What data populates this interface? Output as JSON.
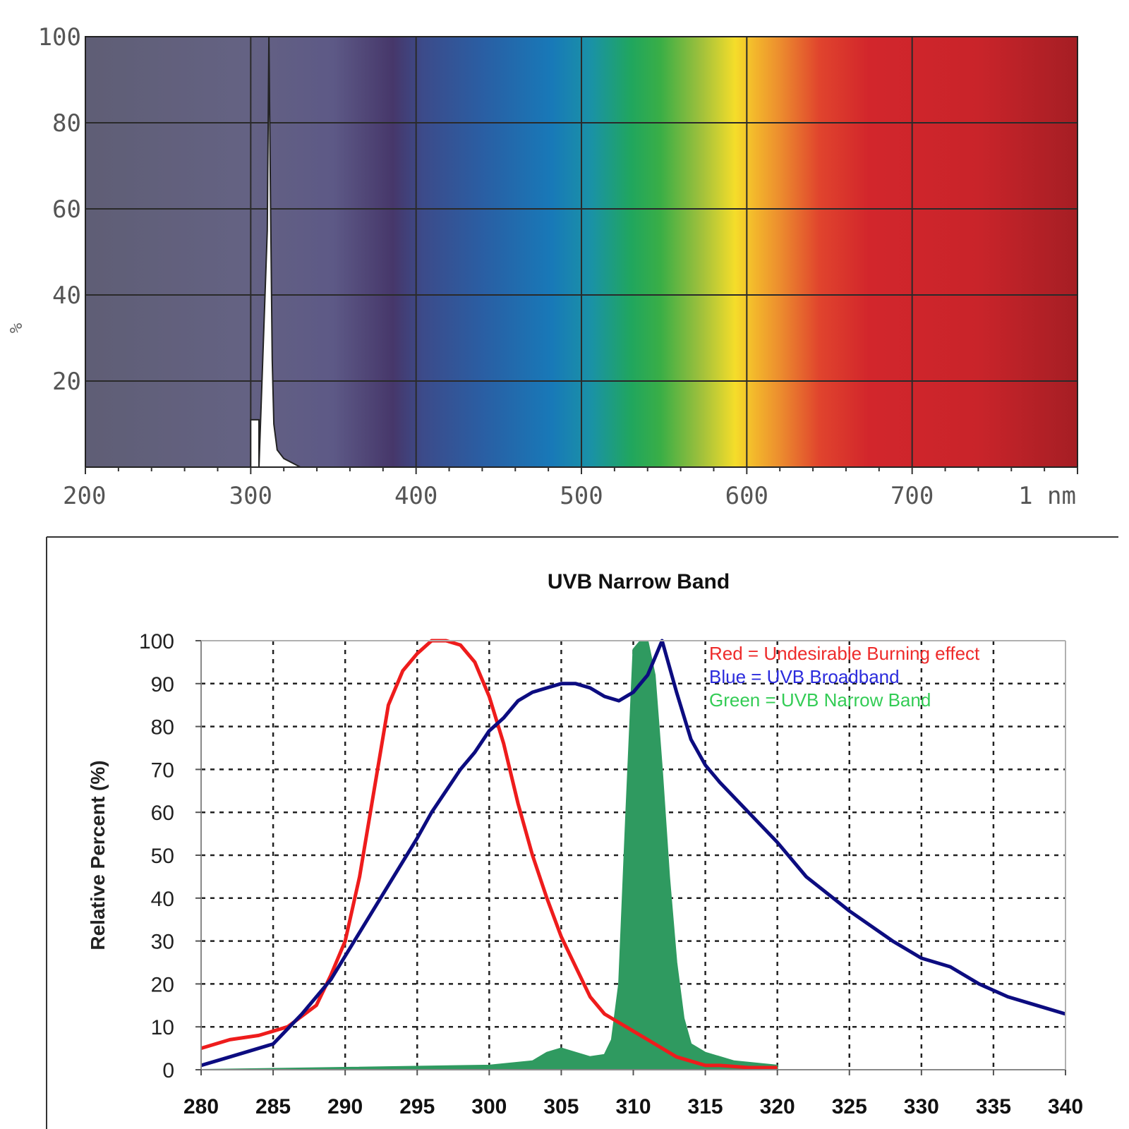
{
  "chart_data": [
    {
      "type": "area",
      "ylabel": "%",
      "y_ticks": [
        "100",
        "80",
        "60",
        "40",
        "20"
      ],
      "x_ticks": [
        "200",
        "300",
        "400",
        "500",
        "600",
        "700",
        "1 nm"
      ],
      "xlim": [
        200,
        800
      ],
      "ylim": [
        0,
        100
      ],
      "grid": true,
      "background": "visible spectrum color gradient",
      "series": [
        {
          "x": [
            300,
            300,
            305,
            305,
            310,
            311,
            312,
            313,
            314,
            316,
            320,
            325,
            330
          ],
          "y": [
            0,
            11,
            11,
            0,
            55,
            100,
            60,
            25,
            10,
            4,
            2,
            1,
            0
          ],
          "color": "#ffffff"
        }
      ]
    },
    {
      "type": "line",
      "title": "UVB Narrow Band",
      "ylabel": "Relative Percent (%)",
      "xlabel": "",
      "xlim": [
        280,
        340
      ],
      "ylim": [
        0,
        100
      ],
      "x_ticks": [
        "280",
        "285",
        "290",
        "295",
        "300",
        "305",
        "310",
        "315",
        "320",
        "325",
        "330",
        "335",
        "340"
      ],
      "y_ticks": [
        "0",
        "10",
        "20",
        "30",
        "40",
        "50",
        "60",
        "70",
        "80",
        "90",
        "100"
      ],
      "grid": true,
      "legend_position": "top-right",
      "legend": [
        {
          "text": "Red = Undesirable Burning effect",
          "color": "#ee2b2b"
        },
        {
          "text": "Blue = UVB Broadband",
          "color": "#2b2bdd"
        },
        {
          "text": "Green = UVB Narrow Band",
          "color": "#33cc55"
        }
      ],
      "series": [
        {
          "name": "Undesirable Burning effect",
          "color": "#ee1c1c",
          "x": [
            280,
            282,
            284,
            286,
            288,
            289,
            290,
            291,
            292,
            293,
            294,
            295,
            296,
            297,
            298,
            299,
            300,
            301,
            302,
            303,
            304,
            305,
            306,
            307,
            308,
            309,
            310,
            311,
            312,
            313,
            314,
            315,
            316,
            318,
            320
          ],
          "y": [
            5,
            7,
            8,
            10,
            15,
            22,
            30,
            45,
            65,
            85,
            93,
            97,
            100,
            100,
            99,
            95,
            87,
            76,
            62,
            50,
            40,
            31,
            24,
            17,
            13,
            11,
            9,
            7,
            5,
            3,
            2,
            1,
            1,
            0.5,
            0.5
          ]
        },
        {
          "name": "UVB Broadband",
          "color": "#0c0c80",
          "x": [
            280,
            282,
            285,
            287,
            289,
            291,
            293,
            295,
            296,
            297,
            298,
            299,
            300,
            301,
            302,
            303,
            304,
            305,
            306,
            307,
            308,
            309,
            310,
            311,
            312,
            313,
            314,
            315,
            316,
            318,
            320,
            322,
            325,
            328,
            330,
            332,
            334,
            336,
            338,
            340
          ],
          "y": [
            1,
            3,
            6,
            13,
            21,
            32,
            43,
            54,
            60,
            65,
            70,
            74,
            79,
            82,
            86,
            88,
            89,
            90,
            90,
            89,
            87,
            86,
            88,
            92,
            100,
            88,
            77,
            71,
            67,
            60,
            53,
            45,
            37,
            30,
            26,
            24,
            20,
            17,
            15,
            13
          ]
        },
        {
          "name": "UVB Narrow Band",
          "color": "#2f9a60",
          "fill": true,
          "x": [
            280,
            290,
            300,
            303,
            304,
            305,
            306,
            307,
            308,
            308.5,
            309,
            309.5,
            310,
            310.5,
            311,
            311.5,
            312,
            312.5,
            313,
            313.5,
            314,
            315,
            317,
            320
          ],
          "y": [
            0,
            0.5,
            1,
            2,
            4,
            5,
            4,
            3,
            3.5,
            7,
            20,
            60,
            98,
            100,
            100,
            92,
            70,
            45,
            25,
            12,
            6,
            4,
            2,
            1
          ]
        }
      ]
    }
  ]
}
